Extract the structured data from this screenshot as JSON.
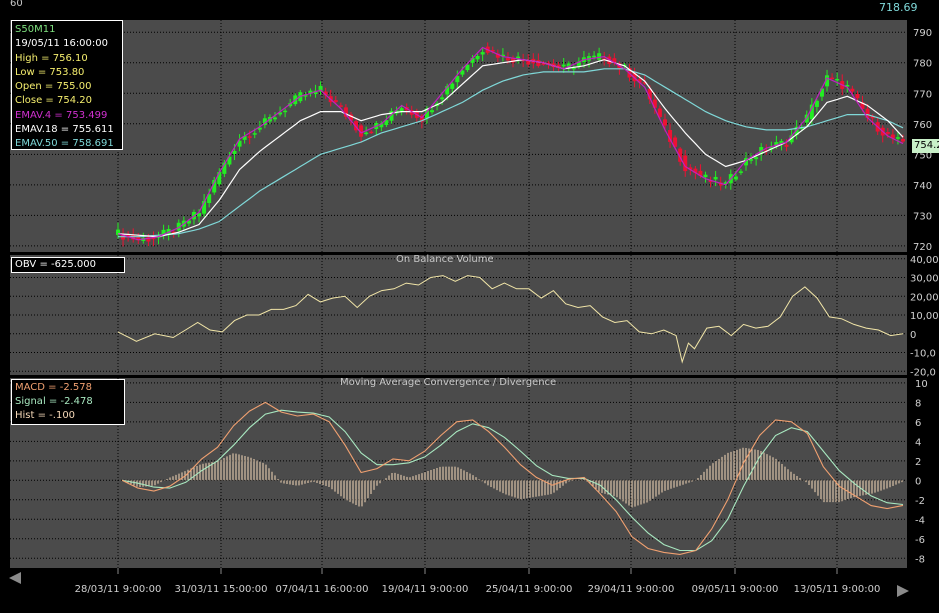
{
  "header": {
    "left_label": "60",
    "right_value": "718.69"
  },
  "colors": {
    "panel_bg": "#4b4b4b",
    "grid": "#000000",
    "up_candle": "#22ee22",
    "down_candle": "#ee1133",
    "ema4": "#c020c0",
    "ema18": "#ffffff",
    "ema50": "#7fd8d8",
    "obv": "#f2e6a8",
    "macd": "#f0a070",
    "signal": "#a8e8c0",
    "hist": "#f5d8b8"
  },
  "price_panel": {
    "info": {
      "symbol": "S50M11",
      "datetime": "19/05/11 16:00:00",
      "high": "High  = 756.10",
      "low": "Low   = 753.80",
      "open": "Open  = 755.00",
      "close": "Close = 754.20",
      "ema4": "EMAV.4 = 753.499",
      "ema18": "EMAV.18 = 755.611",
      "ema50": "EMAV.50 = 758.691"
    },
    "last_price_tag": "754.2",
    "y_ticks": [
      "790",
      "780",
      "770",
      "760",
      "750",
      "740",
      "730",
      "720"
    ]
  },
  "obv_panel": {
    "title": "On Balance Volume",
    "info": "OBV = -625.000",
    "y_ticks": [
      "40,00",
      "30,00",
      "20,00",
      "10,00",
      "0",
      "-10,0",
      "-20,0"
    ]
  },
  "macd_panel": {
    "title": "Moving Average Convergence / Divergence",
    "macd": "MACD = -2.578",
    "signal": "Signal = -2.478",
    "hist": "Hist = -.100",
    "y_ticks": [
      "10",
      "8",
      "6",
      "4",
      "2",
      "0",
      "-2",
      "-4",
      "-6",
      "-8"
    ]
  },
  "x_axis": {
    "labels": [
      "28/03/11 9:00:00",
      "31/03/11 15:00:00",
      "07/04/11 16:00:00",
      "19/04/11 9:00:00",
      "25/04/11 9:00:00",
      "29/04/11 9:00:00",
      "09/05/11 9:00:00",
      "13/05/11 9:00:00"
    ]
  },
  "chart_data": [
    {
      "type": "line",
      "name": "price",
      "y_range": [
        718,
        794
      ],
      "ema_points": [
        [
          0,
          724,
          724,
          723
        ],
        [
          4,
          722,
          723.5,
          723
        ],
        [
          8,
          723,
          723,
          723.5
        ],
        [
          12,
          726,
          724.5,
          724
        ],
        [
          16,
          731,
          727,
          725.5
        ],
        [
          20,
          744,
          735,
          728
        ],
        [
          24,
          755,
          745,
          733
        ],
        [
          28,
          759,
          751,
          738
        ],
        [
          32,
          764,
          756,
          742
        ],
        [
          36,
          769,
          761,
          746
        ],
        [
          40,
          771,
          764,
          750
        ],
        [
          44,
          765,
          764,
          752
        ],
        [
          48,
          757,
          761,
          754
        ],
        [
          52,
          760,
          763,
          757
        ],
        [
          56,
          766,
          764,
          759
        ],
        [
          60,
          762,
          764,
          761
        ],
        [
          64,
          770,
          767,
          764
        ],
        [
          68,
          778,
          773,
          767
        ],
        [
          72,
          785,
          779,
          771
        ],
        [
          76,
          782,
          780,
          774
        ],
        [
          80,
          781,
          781,
          776
        ],
        [
          84,
          780,
          780,
          777
        ],
        [
          88,
          778,
          778,
          777
        ],
        [
          92,
          781,
          779,
          777
        ],
        [
          96,
          782,
          781,
          778
        ],
        [
          100,
          778,
          779,
          778
        ],
        [
          104,
          772,
          774,
          776
        ],
        [
          108,
          758,
          765,
          772
        ],
        [
          112,
          746,
          757,
          768
        ],
        [
          116,
          742,
          750,
          764
        ],
        [
          120,
          740,
          746,
          761
        ],
        [
          124,
          748,
          748,
          759
        ],
        [
          128,
          752,
          751,
          758
        ],
        [
          132,
          754,
          754,
          758
        ],
        [
          136,
          762,
          759,
          759
        ],
        [
          140,
          775,
          767,
          761
        ],
        [
          144,
          772,
          769,
          763
        ],
        [
          148,
          762,
          766,
          763
        ],
        [
          152,
          756,
          761,
          761
        ],
        [
          155,
          753.5,
          755.6,
          758.7
        ]
      ],
      "last": {
        "open": 755.0,
        "high": 756.1,
        "low": 753.8,
        "close": 754.2
      }
    },
    {
      "type": "line",
      "name": "obv",
      "y_range": [
        -22,
        42
      ],
      "points": [
        [
          0,
          1
        ],
        [
          6,
          -4
        ],
        [
          12,
          0
        ],
        [
          18,
          -2
        ],
        [
          22,
          2
        ],
        [
          26,
          6
        ],
        [
          30,
          2
        ],
        [
          34,
          1
        ],
        [
          38,
          7
        ],
        [
          42,
          10
        ],
        [
          46,
          10
        ],
        [
          50,
          13
        ],
        [
          54,
          13
        ],
        [
          58,
          15
        ],
        [
          62,
          21
        ],
        [
          66,
          17
        ],
        [
          70,
          19
        ],
        [
          74,
          20
        ],
        [
          78,
          14
        ],
        [
          82,
          20
        ],
        [
          86,
          23
        ],
        [
          90,
          24
        ],
        [
          94,
          27
        ],
        [
          98,
          26
        ],
        [
          102,
          30
        ],
        [
          106,
          31
        ],
        [
          110,
          28
        ],
        [
          114,
          31
        ],
        [
          118,
          30
        ],
        [
          122,
          24
        ],
        [
          126,
          27
        ],
        [
          130,
          24
        ],
        [
          134,
          24
        ],
        [
          138,
          19
        ],
        [
          142,
          23
        ],
        [
          146,
          16
        ],
        [
          150,
          14
        ],
        [
          154,
          15
        ],
        [
          158,
          9
        ],
        [
          162,
          6
        ],
        [
          166,
          7
        ],
        [
          170,
          1
        ],
        [
          174,
          0
        ],
        [
          178,
          2
        ],
        [
          182,
          -1
        ],
        [
          184,
          -15
        ],
        [
          186,
          -5
        ],
        [
          188,
          -8
        ],
        [
          192,
          3
        ],
        [
          196,
          4
        ],
        [
          200,
          -1
        ],
        [
          204,
          5
        ],
        [
          208,
          3
        ],
        [
          212,
          4
        ],
        [
          216,
          9
        ],
        [
          220,
          20
        ],
        [
          224,
          25
        ],
        [
          228,
          19
        ],
        [
          232,
          9
        ],
        [
          236,
          8
        ],
        [
          240,
          5
        ],
        [
          244,
          3
        ],
        [
          248,
          2
        ],
        [
          252,
          -1
        ],
        [
          256,
          0
        ]
      ]
    },
    {
      "type": "line",
      "name": "macd",
      "y_range": [
        -9,
        10.5
      ],
      "macd_points": [
        [
          0,
          0
        ],
        [
          4,
          -0.8
        ],
        [
          8,
          -1.1
        ],
        [
          12,
          -0.6
        ],
        [
          16,
          0.5
        ],
        [
          20,
          2.2
        ],
        [
          24,
          3.4
        ],
        [
          28,
          5.6
        ],
        [
          32,
          7.1
        ],
        [
          36,
          8.0
        ],
        [
          40,
          7.0
        ],
        [
          44,
          6.6
        ],
        [
          48,
          6.8
        ],
        [
          52,
          6.0
        ],
        [
          56,
          3.6
        ],
        [
          60,
          0.8
        ],
        [
          64,
          1.2
        ],
        [
          68,
          2.2
        ],
        [
          72,
          2.0
        ],
        [
          76,
          3.0
        ],
        [
          80,
          4.6
        ],
        [
          84,
          6.0
        ],
        [
          88,
          6.2
        ],
        [
          92,
          5.0
        ],
        [
          96,
          3.4
        ],
        [
          100,
          1.6
        ],
        [
          104,
          0.3
        ],
        [
          108,
          -0.5
        ],
        [
          112,
          0.1
        ],
        [
          116,
          0.3
        ],
        [
          120,
          -1.4
        ],
        [
          124,
          -3.2
        ],
        [
          128,
          -5.8
        ],
        [
          132,
          -7.0
        ],
        [
          136,
          -7.4
        ],
        [
          140,
          -7.6
        ],
        [
          144,
          -7.2
        ],
        [
          148,
          -5.0
        ],
        [
          152,
          -2.0
        ],
        [
          156,
          1.8
        ],
        [
          160,
          4.6
        ],
        [
          164,
          6.2
        ],
        [
          168,
          6.0
        ],
        [
          172,
          4.8
        ],
        [
          176,
          1.4
        ],
        [
          180,
          -0.6
        ],
        [
          184,
          -1.6
        ],
        [
          188,
          -2.6
        ],
        [
          192,
          -2.9
        ],
        [
          196,
          -2.58
        ]
      ],
      "signal_points": [
        [
          0,
          0
        ],
        [
          4,
          -0.3
        ],
        [
          8,
          -0.7
        ],
        [
          12,
          -0.8
        ],
        [
          16,
          -0.2
        ],
        [
          20,
          1.0
        ],
        [
          24,
          2.0
        ],
        [
          28,
          3.6
        ],
        [
          32,
          5.4
        ],
        [
          36,
          6.8
        ],
        [
          40,
          7.2
        ],
        [
          44,
          7.0
        ],
        [
          48,
          6.9
        ],
        [
          52,
          6.5
        ],
        [
          56,
          5.0
        ],
        [
          60,
          2.8
        ],
        [
          64,
          1.6
        ],
        [
          68,
          1.6
        ],
        [
          72,
          1.8
        ],
        [
          76,
          2.4
        ],
        [
          80,
          3.6
        ],
        [
          84,
          5.0
        ],
        [
          88,
          5.8
        ],
        [
          92,
          5.4
        ],
        [
          96,
          4.4
        ],
        [
          100,
          3.0
        ],
        [
          104,
          1.5
        ],
        [
          108,
          0.5
        ],
        [
          112,
          0.2
        ],
        [
          116,
          0.2
        ],
        [
          120,
          -0.5
        ],
        [
          124,
          -2.0
        ],
        [
          128,
          -3.8
        ],
        [
          132,
          -5.4
        ],
        [
          136,
          -6.6
        ],
        [
          140,
          -7.2
        ],
        [
          144,
          -7.2
        ],
        [
          148,
          -6.2
        ],
        [
          152,
          -4.0
        ],
        [
          156,
          -0.6
        ],
        [
          160,
          2.4
        ],
        [
          164,
          4.6
        ],
        [
          168,
          5.4
        ],
        [
          172,
          5.0
        ],
        [
          176,
          3.0
        ],
        [
          180,
          1.0
        ],
        [
          184,
          -0.4
        ],
        [
          188,
          -1.6
        ],
        [
          192,
          -2.3
        ],
        [
          196,
          -2.478
        ]
      ],
      "hist_last": -0.1
    }
  ]
}
